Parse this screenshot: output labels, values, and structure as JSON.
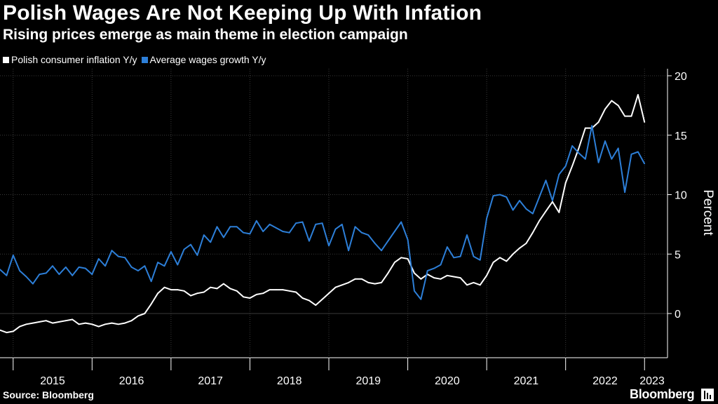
{
  "header": {
    "title": "Polish Wages Are Not Keeping Up With Infation",
    "subtitle": "Rising prices emerge as main theme in election campaign"
  },
  "footer": {
    "source": "Source: Bloomberg",
    "brand": "Bloomberg"
  },
  "chart_data": {
    "type": "line",
    "title": "Polish Wages Are Not Keeping Up With Infation",
    "subtitle": "Rising prices emerge as main theme in election campaign",
    "xlabel": "",
    "ylabel": "Percent",
    "ylim": [
      -3.5,
      20.5
    ],
    "yticks": [
      0,
      5,
      10,
      15,
      20
    ],
    "x_start": "2014-11",
    "x_end": "2023-03",
    "x_tick_labels": [
      "2015",
      "2016",
      "2017",
      "2018",
      "2019",
      "2020",
      "2021",
      "2022",
      "2023"
    ],
    "grid": true,
    "legend_position": "top-left",
    "colors": {
      "inflation": "#ffffff",
      "wages": "#2d7fd8",
      "grid": "#3a3a3a"
    },
    "series": [
      {
        "name": "Polish consumer inflation Y/y",
        "key": "inflation",
        "start": "2014-11",
        "values": [
          -1.4,
          -1.6,
          -1.5,
          -1.1,
          -0.9,
          -0.8,
          -0.7,
          -0.6,
          -0.8,
          -0.7,
          -0.6,
          -0.5,
          -0.9,
          -0.8,
          -0.9,
          -1.1,
          -0.9,
          -0.8,
          -0.9,
          -0.8,
          -0.6,
          -0.2,
          0.0,
          0.8,
          1.7,
          2.2,
          2.0,
          2.0,
          1.9,
          1.5,
          1.7,
          1.8,
          2.2,
          2.1,
          2.5,
          2.1,
          1.9,
          1.4,
          1.3,
          1.6,
          1.7,
          2.0,
          2.0,
          2.0,
          1.9,
          1.8,
          1.3,
          1.1,
          0.7,
          1.2,
          1.7,
          2.2,
          2.4,
          2.6,
          2.9,
          2.9,
          2.6,
          2.5,
          2.6,
          3.4,
          4.3,
          4.7,
          4.6,
          3.4,
          2.9,
          3.3,
          3.0,
          2.9,
          3.2,
          3.1,
          3.0,
          2.4,
          2.6,
          2.4,
          3.2,
          4.3,
          4.7,
          4.4,
          5.0,
          5.5,
          5.9,
          6.8,
          7.8,
          8.6,
          9.4,
          8.5,
          11.0,
          12.4,
          13.9,
          15.6,
          15.6,
          16.1,
          17.2,
          17.9,
          17.5,
          16.6,
          16.6,
          18.4,
          16.1
        ]
      },
      {
        "name": "Average wages growth Y/y",
        "key": "wages",
        "start": "2014-11",
        "values": [
          3.7,
          3.2,
          4.9,
          3.6,
          3.1,
          2.5,
          3.3,
          3.4,
          4.0,
          3.3,
          3.9,
          3.2,
          3.9,
          3.8,
          3.3,
          4.6,
          4.0,
          5.3,
          4.8,
          4.7,
          3.9,
          3.6,
          4.0,
          2.7,
          4.3,
          4.0,
          5.2,
          4.1,
          5.4,
          5.8,
          4.9,
          6.6,
          6.0,
          7.3,
          6.4,
          7.3,
          7.3,
          6.8,
          6.7,
          7.8,
          6.9,
          7.5,
          7.2,
          6.9,
          6.8,
          7.6,
          7.7,
          6.1,
          7.5,
          7.6,
          5.7,
          7.1,
          7.5,
          5.3,
          7.3,
          6.8,
          6.6,
          5.9,
          5.3,
          6.1,
          6.9,
          7.7,
          6.2,
          1.9,
          1.2,
          3.6,
          3.8,
          4.1,
          5.6,
          4.7,
          4.8,
          6.6,
          4.8,
          4.5,
          8.0,
          9.9,
          10.0,
          9.8,
          8.7,
          9.5,
          8.8,
          8.4,
          9.8,
          11.2,
          9.5,
          11.7,
          12.4,
          14.1,
          13.5,
          13.0,
          15.8,
          12.7,
          14.5,
          13.0,
          13.9,
          10.2,
          13.4,
          13.6,
          12.6
        ]
      }
    ]
  }
}
